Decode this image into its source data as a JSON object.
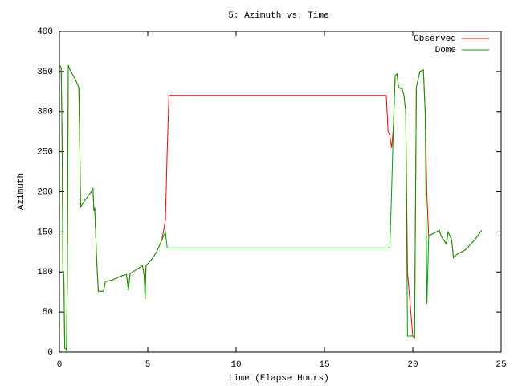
{
  "chart_data": {
    "type": "line",
    "title": "5: Azimuth vs. Time",
    "xlabel": "time (Elapse Hours)",
    "ylabel": "Azimuth",
    "x": [
      0,
      0.1,
      0.15,
      0.2,
      0.25,
      0.3,
      0.4,
      0.45,
      0.5,
      0.6,
      0.9,
      1.1,
      1.15,
      1.2,
      1.4,
      1.8,
      1.9,
      1.95,
      2.0,
      2.1,
      2.2,
      2.5,
      2.6,
      3.0,
      3.5,
      3.8,
      3.9,
      4.0,
      4.5,
      4.7,
      4.8,
      4.85,
      4.9,
      5.2,
      5.5,
      5.8,
      6.0,
      6.1,
      6.2,
      18.5,
      18.6,
      18.7,
      18.8,
      18.9,
      19.0,
      19.1,
      19.2,
      19.4,
      19.5,
      19.6,
      19.7,
      20.0,
      20.1,
      20.2,
      20.4,
      20.6,
      20.7,
      20.8,
      20.9,
      21.5,
      21.6,
      21.9,
      22.0,
      22.2,
      22.3,
      22.5,
      23.0,
      23.5,
      23.9
    ],
    "series": [
      {
        "name": "Observed",
        "color": "#ff0000",
        "values": [
          358,
          355,
          270,
          100,
          97,
          5,
          3,
          95,
          358,
          352,
          340,
          330,
          260,
          181,
          188,
          200,
          204,
          176,
          180,
          120,
          76,
          76,
          88,
          90,
          95,
          97,
          77,
          98,
          105,
          108,
          95,
          66,
          108,
          115,
          125,
          140,
          165,
          250,
          320,
          320,
          275,
          270,
          255,
          280,
          345,
          347,
          330,
          328,
          320,
          300,
          100,
          20,
          18,
          330,
          350,
          352,
          300,
          195,
          145,
          152,
          145,
          135,
          150,
          140,
          118,
          122,
          128,
          140,
          152
        ]
      },
      {
        "name": "Dome",
        "color": "#00a000",
        "values": [
          358,
          355,
          270,
          100,
          97,
          5,
          3,
          95,
          358,
          352,
          340,
          330,
          260,
          181,
          188,
          200,
          204,
          176,
          180,
          120,
          76,
          76,
          88,
          90,
          95,
          97,
          77,
          98,
          105,
          108,
          95,
          66,
          108,
          115,
          125,
          140,
          150,
          130,
          130,
          130,
          130,
          130,
          200,
          280,
          345,
          347,
          330,
          328,
          320,
          300,
          20,
          20,
          18,
          330,
          350,
          352,
          300,
          60,
          145,
          152,
          145,
          135,
          150,
          140,
          118,
          122,
          128,
          140,
          152
        ]
      }
    ],
    "xlim": [
      0,
      25
    ],
    "xticks": [
      0,
      5,
      10,
      15,
      20,
      25
    ],
    "ylim": [
      0,
      400
    ],
    "yticks": [
      0,
      50,
      100,
      150,
      200,
      250,
      300,
      350,
      400
    ],
    "legend": "top-right"
  }
}
